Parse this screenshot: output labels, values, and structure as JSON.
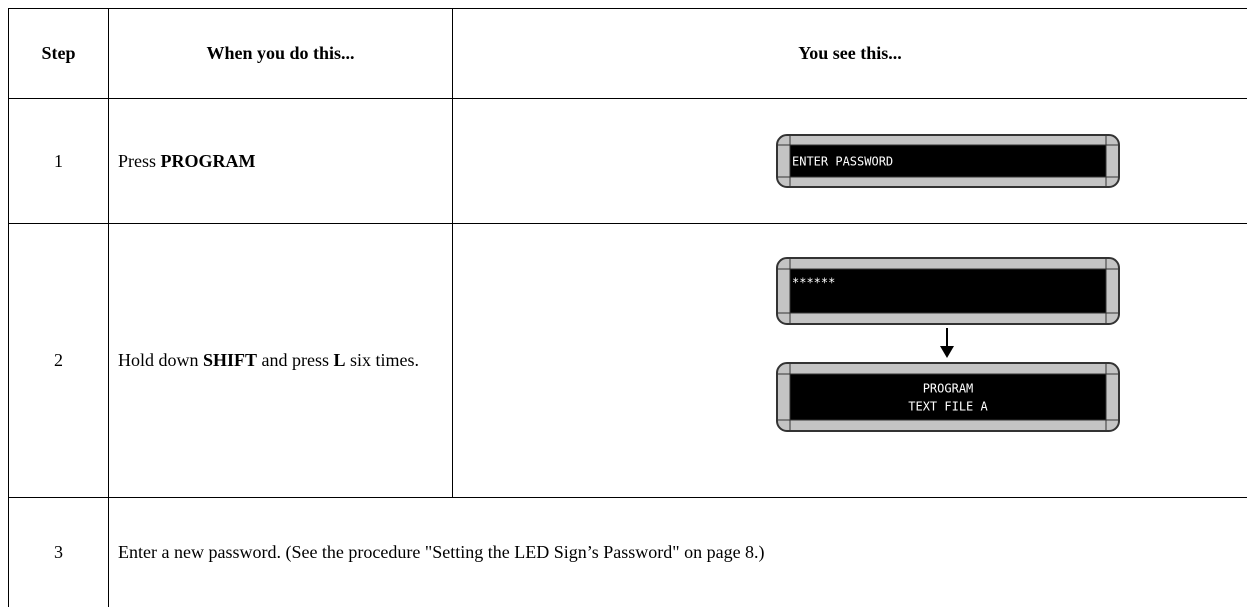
{
  "header": {
    "step": "Step",
    "action": "When you do this...",
    "result": "You see this..."
  },
  "rows": [
    {
      "step": "1",
      "action": [
        {
          "text": "Press "
        },
        {
          "text": "PROGRAM",
          "bold": true
        }
      ],
      "display": [
        [
          "ENTER PASSWORD"
        ]
      ]
    },
    {
      "step": "2",
      "action": [
        {
          "text": "Hold down "
        },
        {
          "text": "SHIFT",
          "bold": true
        },
        {
          "text": " and press "
        },
        {
          "text": "L",
          "bold": true
        },
        {
          "text": " six times."
        }
      ],
      "display": [
        [
          "******"
        ],
        [
          "PROGRAM",
          "TEXT FILE A"
        ]
      ]
    },
    {
      "step": "3",
      "action": [
        {
          "text": "Enter a new password. (See the procedure \"Setting the LED Sign’s Password\" on page 8.)"
        }
      ]
    }
  ]
}
